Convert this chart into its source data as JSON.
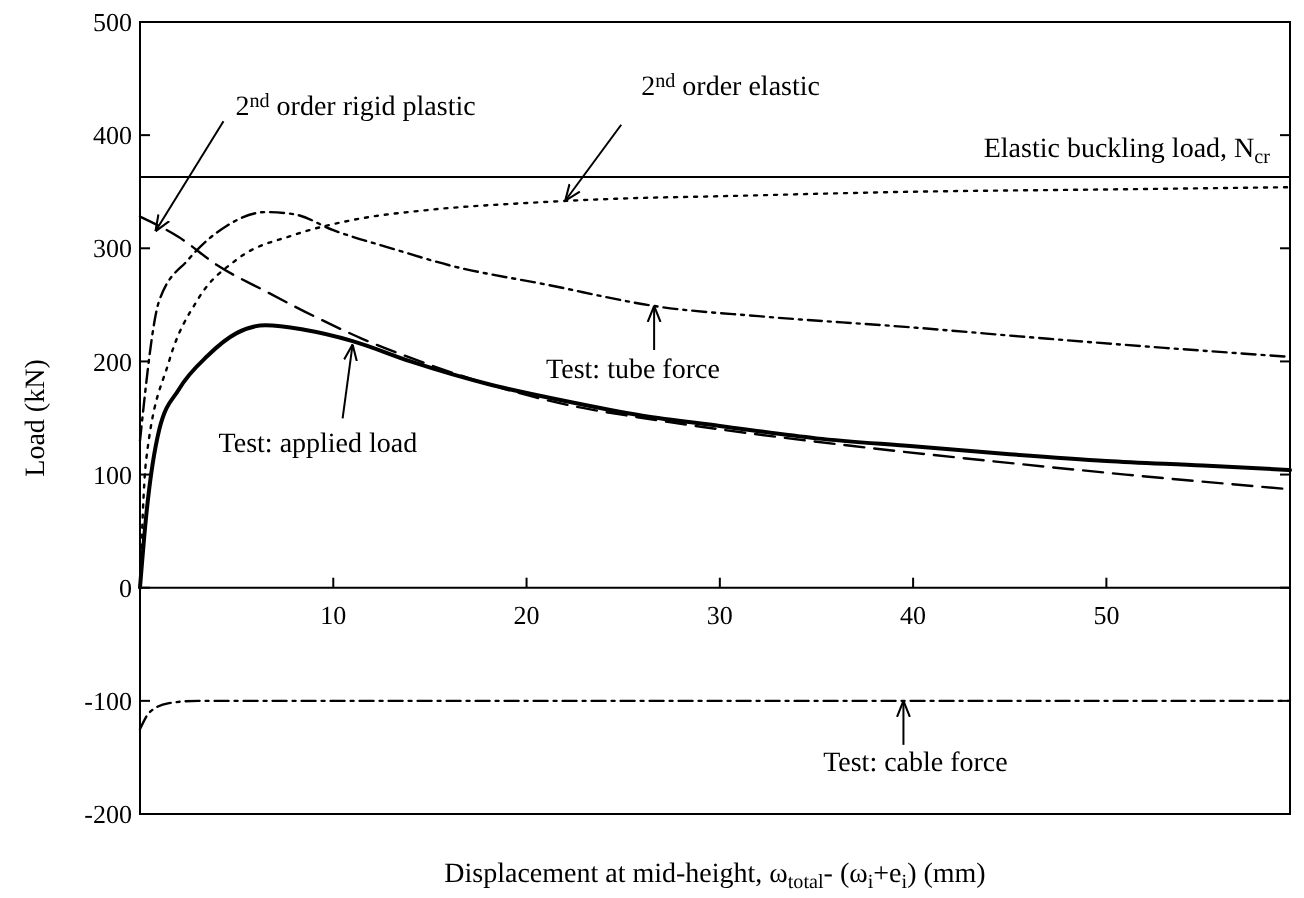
{
  "chart_data": {
    "type": "line",
    "xlabel": "Displacement at mid-height, ω$_{total}$- (ω$_{i}$+e$_{i}$) (mm)",
    "ylabel": "Load (kN)",
    "xlim": [
      0,
      59.5
    ],
    "ylim": [
      -200,
      500
    ],
    "xticks": [
      10,
      20,
      30,
      40,
      50
    ],
    "yticks": [
      -200,
      -100,
      0,
      100,
      200,
      300,
      400,
      500
    ],
    "marker": "none",
    "series": [
      {
        "color": "#000000",
        "line_style": "solid",
        "x": [
          0,
          0.3,
          1,
          2,
          3.5,
          5,
          6.5,
          8.5,
          11,
          14,
          18,
          22,
          26,
          30,
          35,
          40,
          45,
          50,
          55,
          59.5
        ],
        "values": [
          0,
          60,
          140,
          175,
          205,
          225,
          232,
          228,
          218,
          200,
          180,
          165,
          152,
          143,
          132,
          125,
          118,
          112,
          108,
          104
        ]
      },
      {
        "color": "#000000",
        "line_style": "dashed",
        "x": [
          0,
          2,
          4,
          6.5,
          9,
          11.5,
          14.5,
          18,
          22,
          26,
          30,
          37,
          44,
          51,
          59.5
        ],
        "values": [
          328,
          310,
          285,
          262,
          240,
          220,
          200,
          180,
          162,
          150,
          140,
          125,
          112,
          100,
          87
        ]
      },
      {
        "color": "#000000",
        "line_style": "dotted",
        "x": [
          0,
          0.3,
          1.5,
          3,
          5,
          8,
          11,
          15,
          20,
          25,
          30,
          40,
          50,
          59.5
        ],
        "values": [
          0,
          110,
          200,
          255,
          290,
          312,
          325,
          334,
          340,
          344,
          346,
          350,
          352,
          354
        ]
      },
      {
        "color": "#000000",
        "line_style": "dashdot",
        "x": [
          0,
          1,
          2.5,
          4.5,
          6.5,
          8,
          10,
          13,
          16,
          21,
          27,
          32,
          40,
          47,
          53,
          59.5
        ],
        "values": [
          130,
          254,
          290,
          320,
          332,
          330,
          316,
          300,
          285,
          268,
          248,
          240,
          230,
          220,
          212,
          204
        ]
      },
      {
        "color": "#000000",
        "line_style": "dashdot",
        "x": [
          0,
          0.5,
          1.5,
          3,
          10,
          20,
          30,
          40,
          50,
          59.5
        ],
        "values": [
          -125,
          -110,
          -102,
          -100,
          -100,
          -100,
          -100,
          -100,
          -100,
          -100
        ]
      }
    ],
    "ref_lines": [
      {
        "axis": "y",
        "value": 363,
        "label": "Elastic buckling load, N$_{cr}$",
        "color": "#000000",
        "line_style": "solid"
      }
    ],
    "annotations": [
      {
        "text": "2$^{nd}$ order rigid plastic",
        "x": 0.8,
        "y": 315
      },
      {
        "text": "2$^{nd}$ order elastic",
        "x": 22,
        "y": 342
      },
      {
        "text": "Test: tube force",
        "x": 26.6,
        "y": 249
      },
      {
        "text": "Test: applied load",
        "x": 11,
        "y": 215
      },
      {
        "text": "Test: cable force",
        "x": 39.5,
        "y": -100
      }
    ]
  }
}
